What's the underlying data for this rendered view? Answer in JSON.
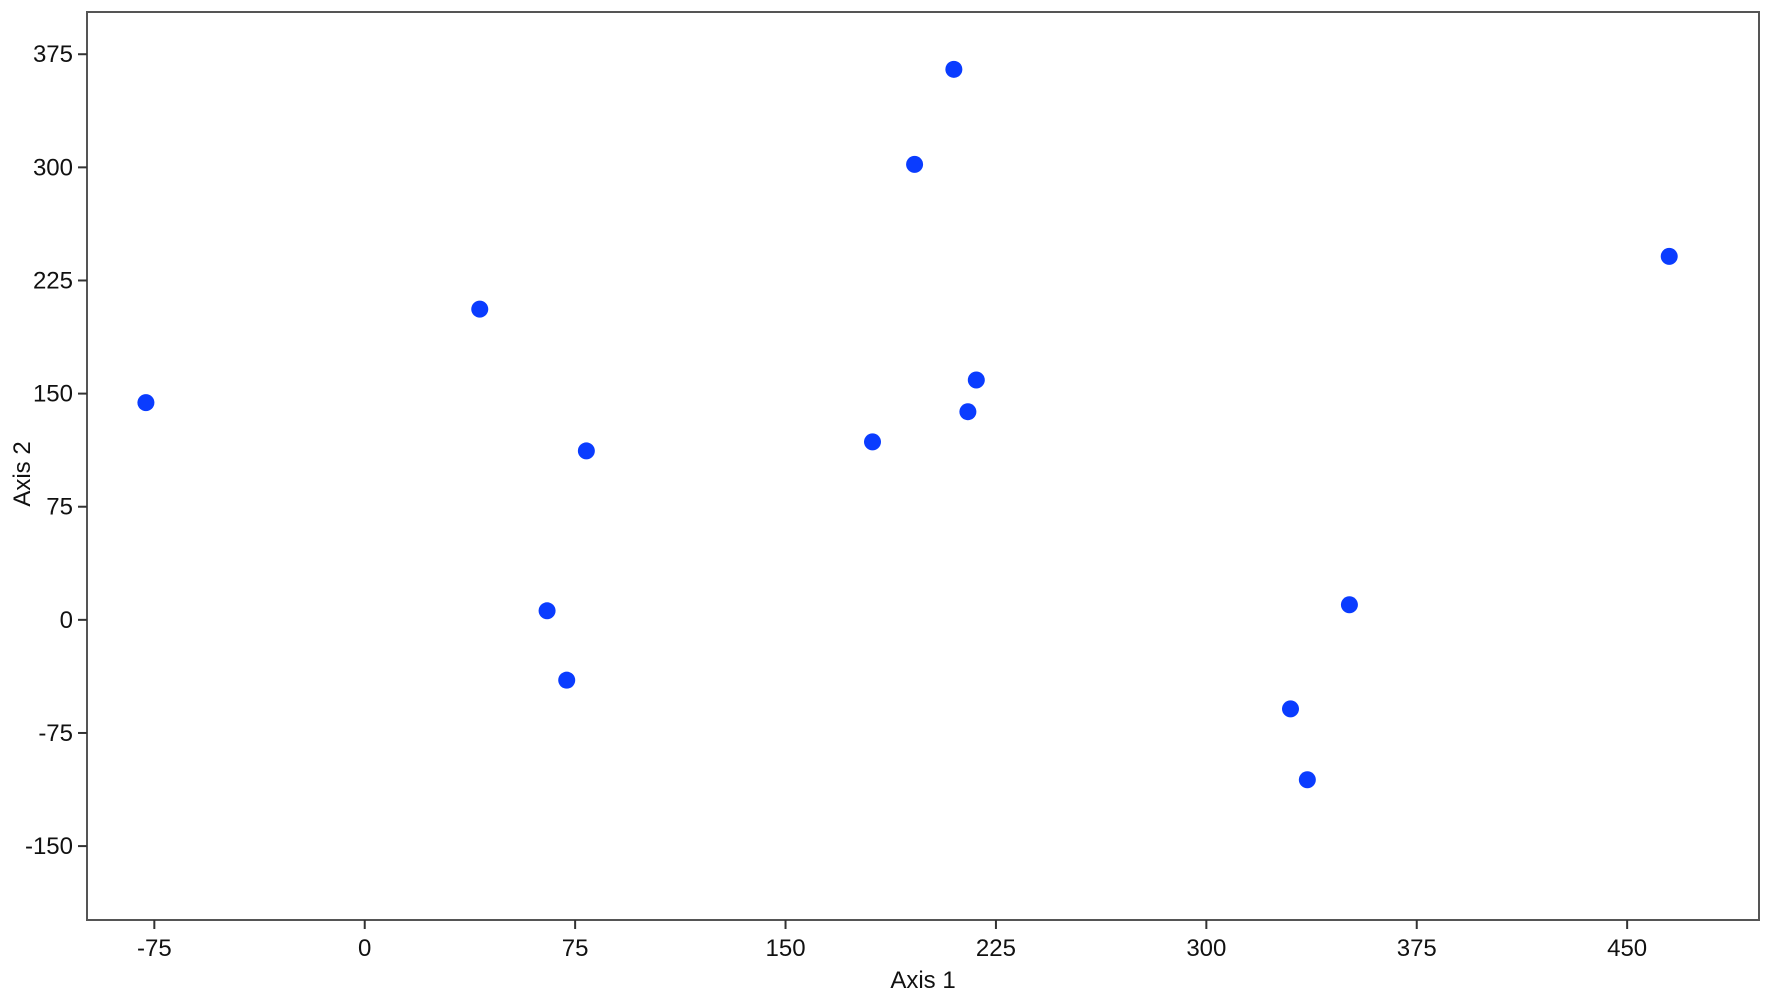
{
  "chart_data": {
    "type": "scatter",
    "title": "",
    "xlabel": "Axis 1",
    "ylabel": "Axis 2",
    "xlim": [
      -99,
      497
    ],
    "ylim": [
      -199,
      403
    ],
    "xticks": [
      -75,
      0,
      75,
      150,
      225,
      300,
      375,
      450
    ],
    "yticks": [
      -150,
      -75,
      0,
      75,
      150,
      225,
      300,
      375
    ],
    "grid": false,
    "legend": "none",
    "marker_color": "#0a3cff",
    "series": [
      {
        "points": [
          {
            "x": -78,
            "y": 144
          },
          {
            "x": 41,
            "y": 206
          },
          {
            "x": 79,
            "y": 112
          },
          {
            "x": 65,
            "y": 6
          },
          {
            "x": 72,
            "y": -40
          },
          {
            "x": 181,
            "y": 118
          },
          {
            "x": 196,
            "y": 302
          },
          {
            "x": 210,
            "y": 365
          },
          {
            "x": 215,
            "y": 138
          },
          {
            "x": 218,
            "y": 159
          },
          {
            "x": 330,
            "y": -59
          },
          {
            "x": 336,
            "y": -106
          },
          {
            "x": 351,
            "y": 10
          },
          {
            "x": 465,
            "y": 241
          }
        ]
      }
    ]
  }
}
